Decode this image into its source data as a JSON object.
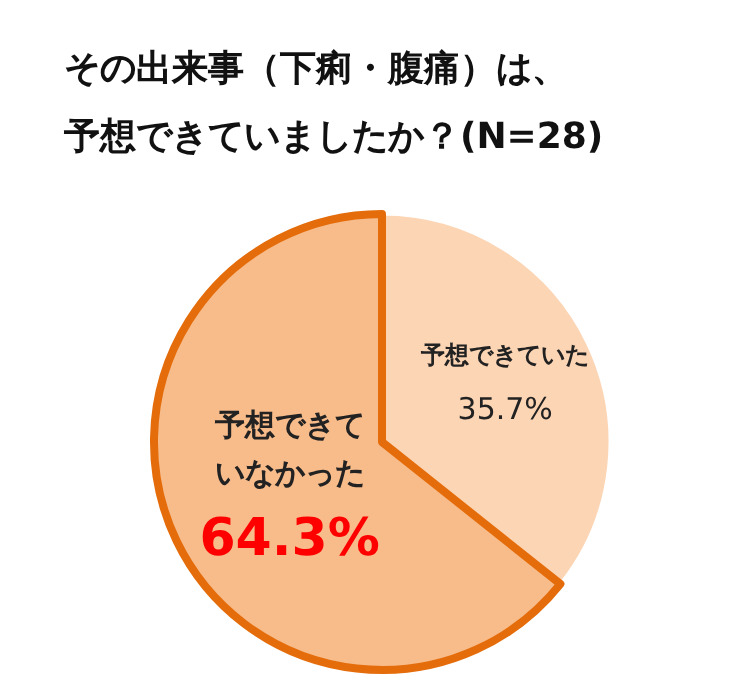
{
  "chart_data": {
    "type": "pie",
    "title": "その出来事（下痢・腹痛）は、予想できていましたか？(N=28)",
    "categories": [
      "予想できていた",
      "予想できていなかった"
    ],
    "values": [
      35.7,
      64.3
    ],
    "colors": [
      "#fcd5b5",
      "#f8bb8a"
    ],
    "value_labels": [
      "35.7%",
      "64.3%"
    ]
  }
}
